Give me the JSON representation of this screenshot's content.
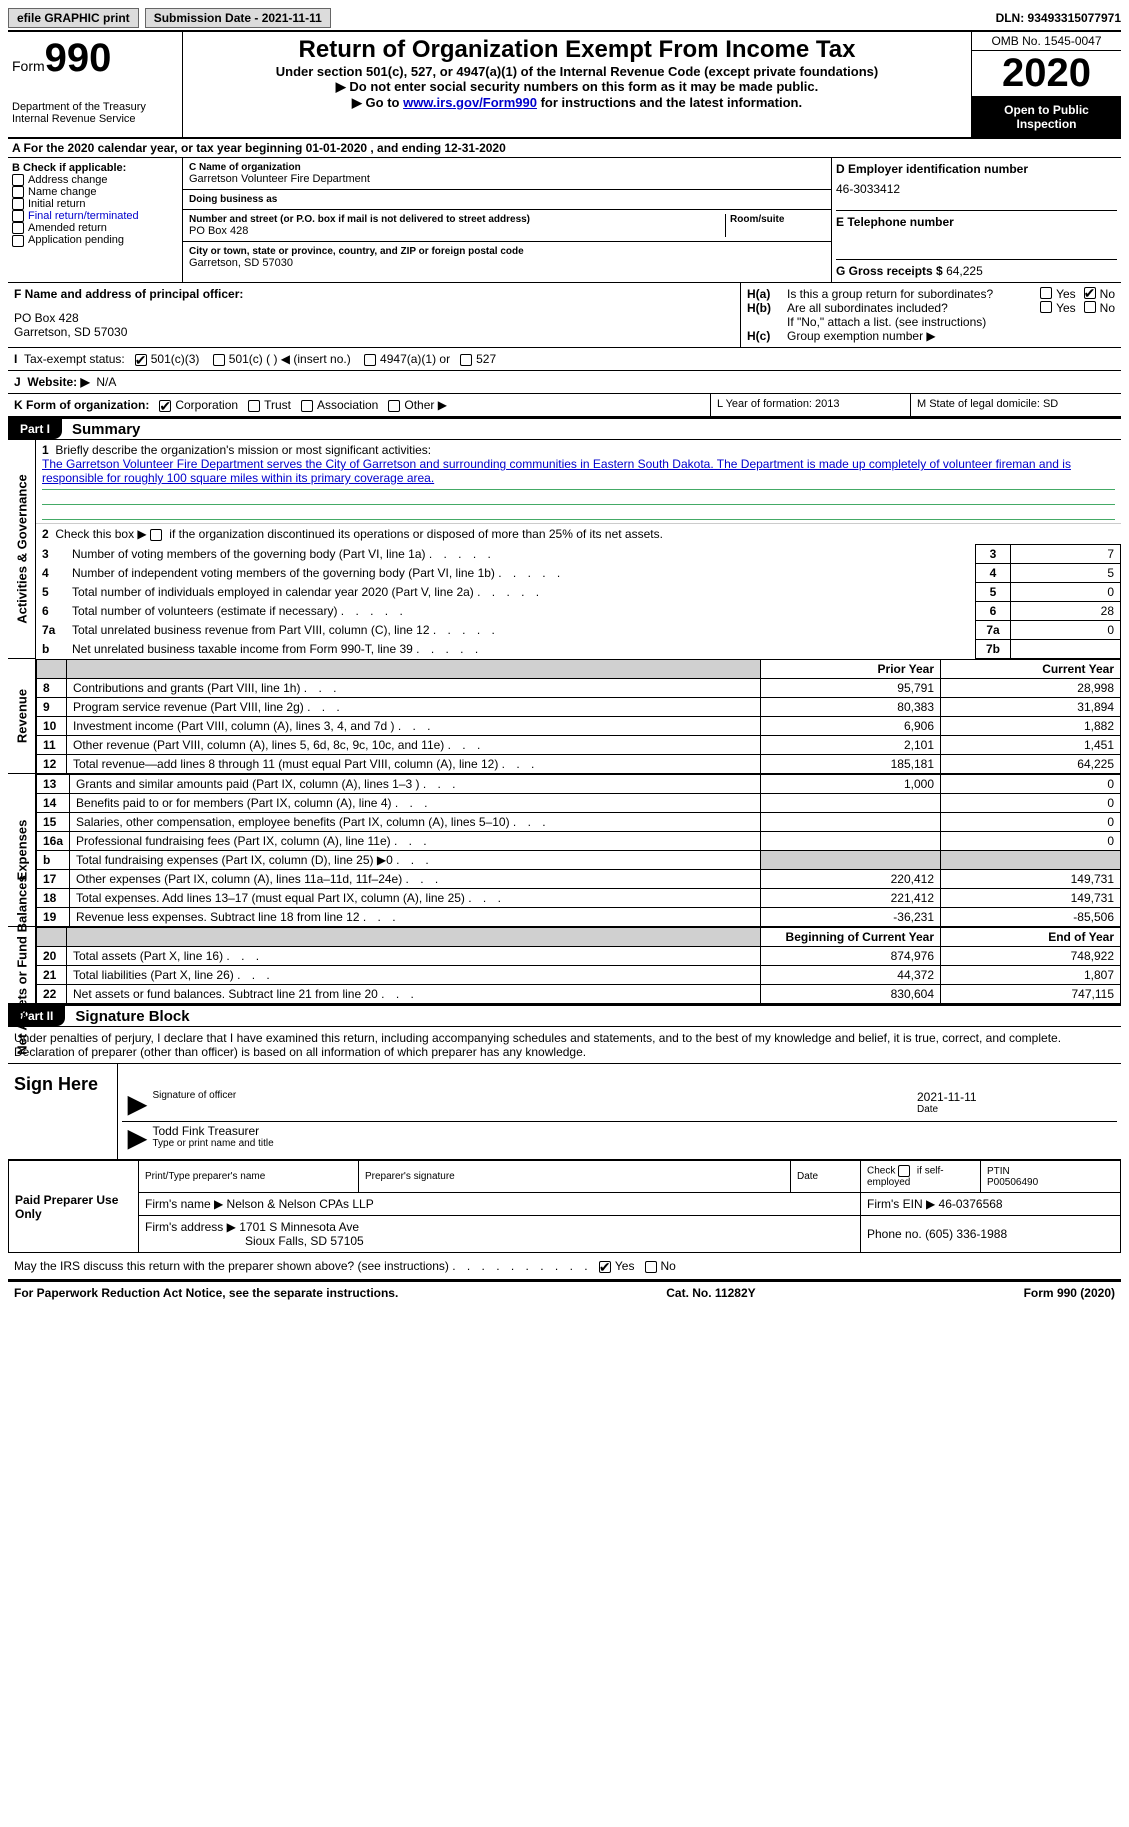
{
  "topbar": {
    "efile_label": "efile GRAPHIC print",
    "submission_label": "Submission Date - 2021-11-11",
    "dln": "DLN: 93493315077971"
  },
  "header": {
    "form_word": "Form",
    "form_number": "990",
    "dept1": "Department of the Treasury",
    "dept2": "Internal Revenue Service",
    "title": "Return of Organization Exempt From Income Tax",
    "subtitle": "Under section 501(c), 527, or 4947(a)(1) of the Internal Revenue Code (except private foundations)",
    "note1": "▶ Do not enter social security numbers on this form as it may be made public.",
    "note2_pre": "▶ Go to ",
    "note2_link": "www.irs.gov/Form990",
    "note2_post": " for instructions and the latest information.",
    "omb": "OMB No. 1545-0047",
    "year": "2020",
    "inspect": "Open to Public Inspection"
  },
  "period": "A For the 2020 calendar year, or tax year beginning 01-01-2020    , and ending 12-31-2020",
  "blockB": {
    "title": "B Check if applicable:",
    "items": [
      "Address change",
      "Name change",
      "Initial return",
      "Final return/terminated",
      "Amended return",
      "Application pending"
    ]
  },
  "blockC": {
    "name_lbl": "C Name of organization",
    "name": "Garretson Volunteer Fire Department",
    "dba_lbl": "Doing business as",
    "addr_lbl": "Number and street (or P.O. box if mail is not delivered to street address)",
    "room_lbl": "Room/suite",
    "addr": "PO Box 428",
    "city_lbl": "City or town, state or province, country, and ZIP or foreign postal code",
    "city": "Garretson, SD  57030"
  },
  "blockD": {
    "ein_lbl": "D Employer identification number",
    "ein": "46-3033412",
    "phone_lbl": "E Telephone number",
    "gross_lbl": "G Gross receipts $",
    "gross": "64,225"
  },
  "blockF": {
    "lbl": "F Name and address of principal officer:",
    "line1": "PO Box 428",
    "line2": "Garretson, SD  57030"
  },
  "blockH": {
    "a_lbl": "Is this a group return for subordinates?",
    "b_lbl": "Are all subordinates included?",
    "b_note": "If \"No,\" attach a list. (see instructions)",
    "c_lbl": "Group exemption number ▶",
    "yes": "Yes",
    "no": "No"
  },
  "rowI": {
    "label": "Tax-exempt status:",
    "opt1": "501(c)(3)",
    "opt2": "501(c) (   ) ◀ (insert no.)",
    "opt3": "4947(a)(1) or",
    "opt4": "527"
  },
  "rowJ": {
    "label": "Website: ▶",
    "val": "N/A"
  },
  "rowK": {
    "label": "K Form of organization:",
    "opts": [
      "Corporation",
      "Trust",
      "Association",
      "Other ▶"
    ]
  },
  "rowL": "L Year of formation: 2013",
  "rowM": "M State of legal domicile: SD",
  "part1": {
    "tag": "Part I",
    "title": "Summary"
  },
  "summary": {
    "l1_lbl": "Briefly describe the organization's mission or most significant activities:",
    "l1_desc": "The Garretson Volunteer Fire Department serves the City of Garretson and surrounding communities in Eastern South Dakota. The Department is made up completely of volunteer fireman and is responsible for roughly 100 square miles within its primary coverage area.",
    "l2": "Check this box ▶    if the organization discontinued its operations or disposed of more than 25% of its net assets.",
    "rows_gov": [
      {
        "n": "3",
        "t": "Number of voting members of the governing body (Part VI, line 1a)",
        "b": "3",
        "v": "7"
      },
      {
        "n": "4",
        "t": "Number of independent voting members of the governing body (Part VI, line 1b)",
        "b": "4",
        "v": "5"
      },
      {
        "n": "5",
        "t": "Total number of individuals employed in calendar year 2020 (Part V, line 2a)",
        "b": "5",
        "v": "0"
      },
      {
        "n": "6",
        "t": "Total number of volunteers (estimate if necessary)",
        "b": "6",
        "v": "28"
      },
      {
        "n": "7a",
        "t": "Total unrelated business revenue from Part VIII, column (C), line 12",
        "b": "7a",
        "v": "0"
      },
      {
        "n": "b",
        "t": "Net unrelated business taxable income from Form 990-T, line 39",
        "b": "7b",
        "v": ""
      }
    ],
    "col_prior": "Prior Year",
    "col_curr": "Current Year",
    "revenue": [
      {
        "n": "8",
        "t": "Contributions and grants (Part VIII, line 1h)",
        "p": "95,791",
        "c": "28,998"
      },
      {
        "n": "9",
        "t": "Program service revenue (Part VIII, line 2g)",
        "p": "80,383",
        "c": "31,894"
      },
      {
        "n": "10",
        "t": "Investment income (Part VIII, column (A), lines 3, 4, and 7d )",
        "p": "6,906",
        "c": "1,882"
      },
      {
        "n": "11",
        "t": "Other revenue (Part VIII, column (A), lines 5, 6d, 8c, 9c, 10c, and 11e)",
        "p": "2,101",
        "c": "1,451"
      },
      {
        "n": "12",
        "t": "Total revenue—add lines 8 through 11 (must equal Part VIII, column (A), line 12)",
        "p": "185,181",
        "c": "64,225"
      }
    ],
    "expenses": [
      {
        "n": "13",
        "t": "Grants and similar amounts paid (Part IX, column (A), lines 1–3 )",
        "p": "1,000",
        "c": "0"
      },
      {
        "n": "14",
        "t": "Benefits paid to or for members (Part IX, column (A), line 4)",
        "p": "",
        "c": "0"
      },
      {
        "n": "15",
        "t": "Salaries, other compensation, employee benefits (Part IX, column (A), lines 5–10)",
        "p": "",
        "c": "0"
      },
      {
        "n": "16a",
        "t": "Professional fundraising fees (Part IX, column (A), line 11e)",
        "p": "",
        "c": "0"
      },
      {
        "n": "b",
        "t": "Total fundraising expenses (Part IX, column (D), line 25) ▶0",
        "p": "shade",
        "c": "shade"
      },
      {
        "n": "17",
        "t": "Other expenses (Part IX, column (A), lines 11a–11d, 11f–24e)",
        "p": "220,412",
        "c": "149,731"
      },
      {
        "n": "18",
        "t": "Total expenses. Add lines 13–17 (must equal Part IX, column (A), line 25)",
        "p": "221,412",
        "c": "149,731"
      },
      {
        "n": "19",
        "t": "Revenue less expenses. Subtract line 18 from line 12",
        "p": "-36,231",
        "c": "-85,506"
      }
    ],
    "col_begin": "Beginning of Current Year",
    "col_end": "End of Year",
    "net": [
      {
        "n": "20",
        "t": "Total assets (Part X, line 16)",
        "p": "874,976",
        "c": "748,922"
      },
      {
        "n": "21",
        "t": "Total liabilities (Part X, line 26)",
        "p": "44,372",
        "c": "1,807"
      },
      {
        "n": "22",
        "t": "Net assets or fund balances. Subtract line 21 from line 20",
        "p": "830,604",
        "c": "747,115"
      }
    ]
  },
  "sides": {
    "gov": "Activities & Governance",
    "rev": "Revenue",
    "exp": "Expenses",
    "net": "Net Assets or Fund Balances"
  },
  "part2": {
    "tag": "Part II",
    "title": "Signature Block"
  },
  "penalties": "Under penalties of perjury, I declare that I have examined this return, including accompanying schedules and statements, and to the best of my knowledge and belief, it is true, correct, and complete. Declaration of preparer (other than officer) is based on all information of which preparer has any knowledge.",
  "sign": {
    "here": "Sign Here",
    "sig_lbl": "Signature of officer",
    "date": "2021-11-11",
    "date_lbl": "Date",
    "name": "Todd Fink  Treasurer",
    "name_lbl": "Type or print name and title"
  },
  "paid": {
    "title": "Paid Preparer Use Only",
    "h1": "Print/Type preparer's name",
    "h2": "Preparer's signature",
    "h3": "Date",
    "h4_a": "Check",
    "h4_b": "if self-employed",
    "h5_lbl": "PTIN",
    "h5": "P00506490",
    "firm_name_lbl": "Firm's name    ▶",
    "firm_name": "Nelson & Nelson CPAs LLP",
    "firm_ein_lbl": "Firm's EIN ▶",
    "firm_ein": "46-0376568",
    "firm_addr_lbl": "Firm's address ▶",
    "firm_addr1": "1701 S Minnesota Ave",
    "firm_addr2": "Sioux Falls, SD  57105",
    "phone_lbl": "Phone no.",
    "phone": "(605) 336-1988"
  },
  "discuss": {
    "q": "May the IRS discuss this return with the preparer shown above? (see instructions)",
    "yes": "Yes",
    "no": "No"
  },
  "footer": {
    "left": "For Paperwork Reduction Act Notice, see the separate instructions.",
    "mid": "Cat. No. 11282Y",
    "right": "Form 990 (2020)"
  }
}
